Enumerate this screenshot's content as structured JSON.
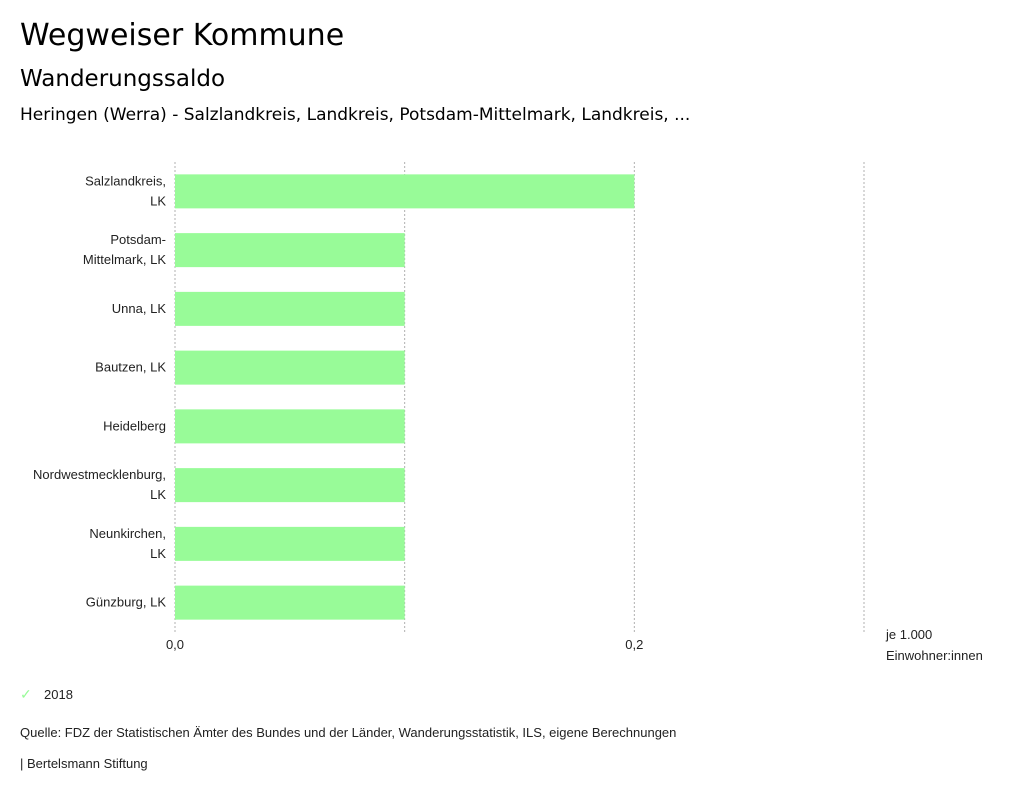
{
  "header": {
    "title": "Wegweiser Kommune",
    "subtitle": "Wanderungssaldo",
    "regions": "Heringen (Werra) - Salzlandkreis, Landkreis, Potsdam-Mittelmark, Landkreis, ..."
  },
  "chart_data": {
    "type": "bar",
    "orientation": "horizontal",
    "title": "Wanderungssaldo",
    "categories": [
      [
        "Salzlandkreis,",
        "LK"
      ],
      [
        "Potsdam-",
        "Mittelmark, LK"
      ],
      [
        "Unna, LK"
      ],
      [
        "Bautzen, LK"
      ],
      [
        "Heidelberg"
      ],
      [
        "Nordwestmecklenburg,",
        "LK"
      ],
      [
        "Neunkirchen,",
        "LK"
      ],
      [
        "Günzburg, LK"
      ]
    ],
    "series": [
      {
        "name": "2018",
        "color": "#98FB98",
        "values": [
          0.2,
          0.1,
          0.1,
          0.1,
          0.1,
          0.1,
          0.1,
          0.1
        ]
      }
    ],
    "xlim": [
      0,
      0.3
    ],
    "gridlines": [
      0,
      0.1,
      0.2,
      0.3
    ],
    "tick_labels": [
      {
        "value": 0,
        "label": "0,0"
      },
      {
        "value": 0.2,
        "label": "0,2"
      }
    ],
    "xlabel": [
      "je 1.000",
      "Einwohner:innen"
    ],
    "grid": true,
    "legend_position": "bottom-left"
  },
  "legend": {
    "label": "2018",
    "icon": "check-icon",
    "color": "#98FB98"
  },
  "footer": {
    "source": "Quelle: FDZ der Statistischen Ämter des Bundes und der Länder, Wanderungsstatistik, ILS, eigene Berechnungen",
    "brand": "| Bertelsmann Stiftung"
  }
}
